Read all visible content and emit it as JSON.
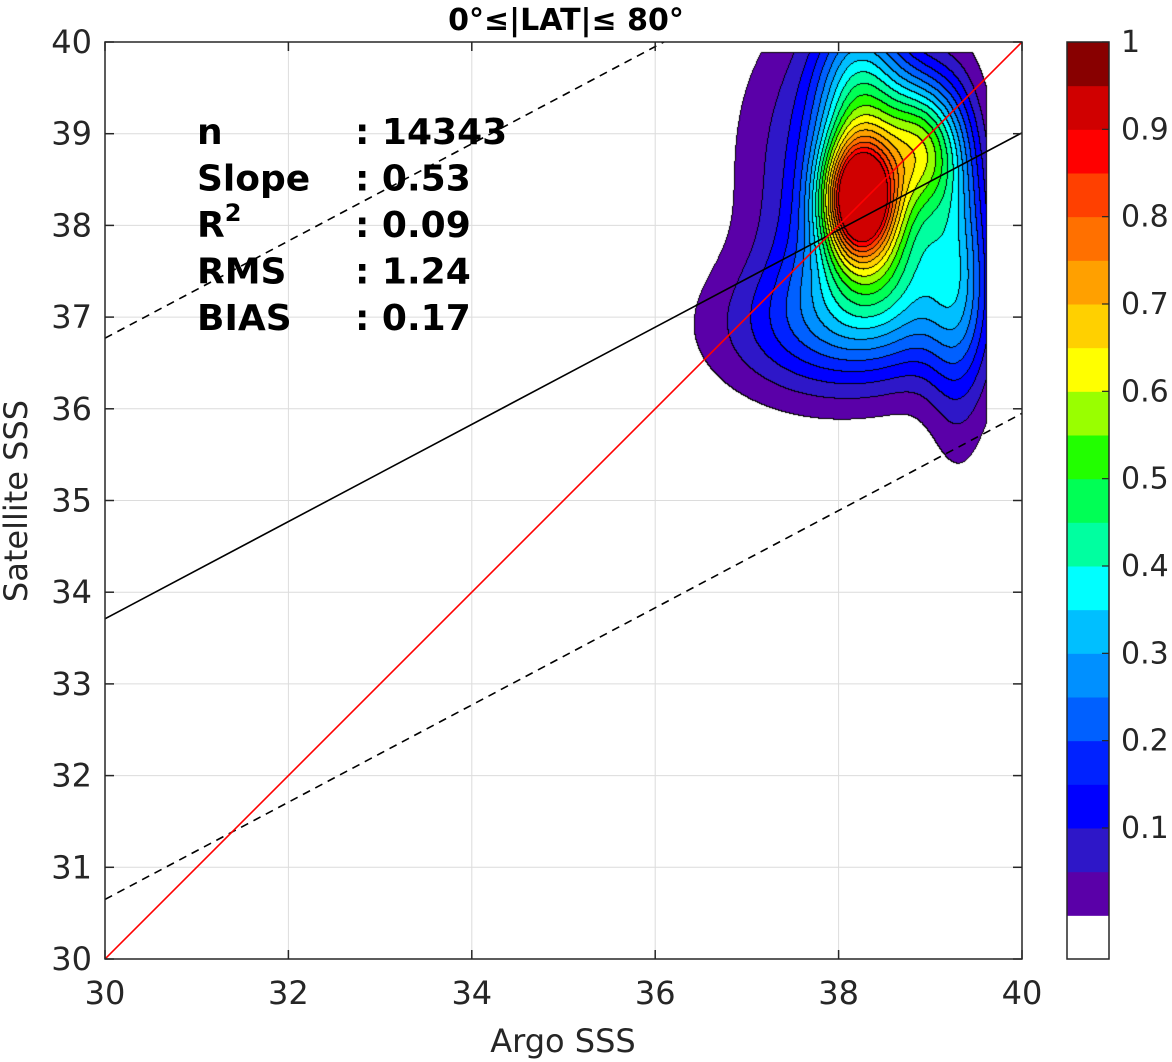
{
  "chart_data": {
    "type": "contour",
    "title": "0°≤|LAT|≤ 80°",
    "xlabel": "Argo SSS",
    "ylabel": "Satellite SSS",
    "xlim": [
      30,
      40
    ],
    "ylim": [
      30,
      40
    ],
    "xticks": [
      "30",
      "32",
      "34",
      "36",
      "38",
      "40"
    ],
    "yticks": [
      "30",
      "31",
      "32",
      "33",
      "34",
      "35",
      "36",
      "37",
      "38",
      "39",
      "40"
    ],
    "grid": true,
    "stats": [
      {
        "label": "n",
        "value": ": 14343"
      },
      {
        "label": "Slope",
        "value": ": 0.53"
      },
      {
        "label": "R",
        "sup": "2",
        "value": ": 0.09"
      },
      {
        "label": "RMS",
        "value": ": 1.24"
      },
      {
        "label": "BIAS",
        "value": ": 0.17"
      }
    ],
    "lines": {
      "one_to_one": {
        "slope": 1,
        "intercept": 0,
        "color": "#ff0000"
      },
      "regression": {
        "slope": 0.53,
        "intercept": 17.81,
        "color": "#000000"
      },
      "upper_dashed": {
        "slope": 0.53,
        "intercept": 20.87,
        "color": "#000000"
      },
      "lower_dashed": {
        "slope": 0.53,
        "intercept": 14.75,
        "color": "#000000"
      }
    },
    "colorbar": {
      "ticks": [
        "0.1",
        "0.2",
        "0.3",
        "0.4",
        "0.5",
        "0.6",
        "0.7",
        "0.8",
        "0.9",
        "1"
      ],
      "levels": [
        0,
        0.05,
        0.1,
        0.15,
        0.2,
        0.25,
        0.3,
        0.35,
        0.4,
        0.45,
        0.5,
        0.55,
        0.6,
        0.65,
        0.7,
        0.75,
        0.8,
        0.85,
        0.9,
        0.95,
        1
      ],
      "colors": [
        "#ffffff",
        "#5a00a8",
        "#2e17c8",
        "#0000ff",
        "#0022ff",
        "#0060ff",
        "#0090ff",
        "#00bfff",
        "#00ffff",
        "#00ffa0",
        "#00ff55",
        "#22ff00",
        "#99ff00",
        "#ffff00",
        "#ffd000",
        "#ffa000",
        "#ff7000",
        "#ff4000",
        "#ff0000",
        "#d00000",
        "#880000"
      ]
    },
    "density": {
      "peaks": [
        {
          "x": 38.22,
          "y": 38.3,
          "sx": 0.28,
          "sy": 0.45,
          "amp": 0.78
        },
        {
          "x": 38.9,
          "y": 38.85,
          "sx": 0.3,
          "sy": 0.55,
          "amp": 0.5
        },
        {
          "x": 38.25,
          "y": 39.25,
          "sx": 0.35,
          "sy": 0.8,
          "amp": 0.45
        },
        {
          "x": 38.45,
          "y": 37.6,
          "sx": 0.55,
          "sy": 0.6,
          "amp": 0.35
        },
        {
          "x": 38.0,
          "y": 36.9,
          "sx": 0.9,
          "sy": 0.55,
          "amp": 0.22
        },
        {
          "x": 37.6,
          "y": 38.7,
          "sx": 0.55,
          "sy": 1.1,
          "amp": 0.12
        },
        {
          "x": 39.3,
          "y": 37.6,
          "sx": 0.25,
          "sy": 1.2,
          "amp": 0.25
        }
      ],
      "clip_y_max": 39.9,
      "clip_x_max": 39.6
    }
  }
}
